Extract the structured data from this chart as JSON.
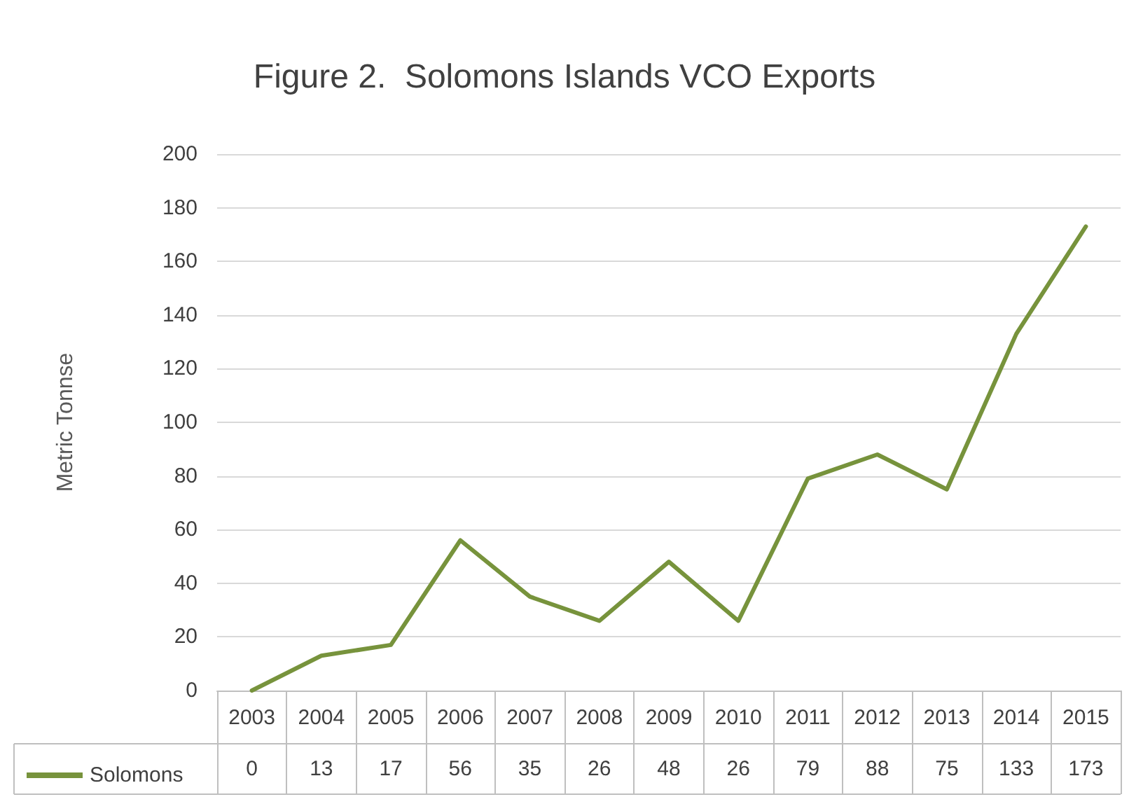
{
  "chart_data": {
    "type": "line",
    "title": "Figure 2.  Solomons Islands VCO Exports",
    "ylabel": "Metric Tonnse",
    "categories": [
      "2003",
      "2004",
      "2005",
      "2006",
      "2007",
      "2008",
      "2009",
      "2010",
      "2011",
      "2012",
      "2013",
      "2014",
      "2015"
    ],
    "series": [
      {
        "name": "Solomons",
        "color": "#77933c",
        "values": [
          0,
          13,
          17,
          56,
          35,
          26,
          48,
          26,
          79,
          88,
          75,
          133,
          173
        ]
      }
    ],
    "ylim": [
      0,
      200
    ],
    "yticks": [
      0,
      20,
      40,
      60,
      80,
      100,
      120,
      140,
      160,
      180,
      200
    ],
    "grid": "y",
    "legend": "bottom left",
    "marker": "none",
    "line_style": "solid",
    "data_labels": true
  }
}
